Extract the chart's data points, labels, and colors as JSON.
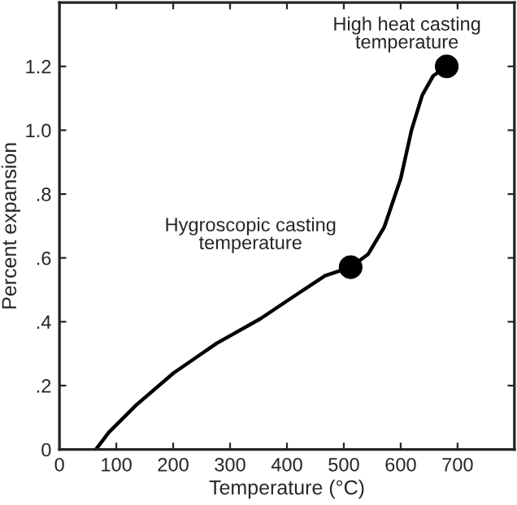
{
  "chart_data": {
    "type": "line",
    "xlabel": "Temperature (°C)",
    "ylabel": "Percent expansion",
    "xlim": [
      0,
      800
    ],
    "xticks": [
      0,
      100,
      200,
      300,
      400,
      500,
      600,
      700
    ],
    "ylim": [
      0,
      1.4
    ],
    "yticks": [
      0,
      {
        "value": 0.2,
        "label": ".2"
      },
      {
        "value": 0.4,
        "label": ".4"
      },
      {
        "value": 0.6,
        "label": ".6"
      },
      {
        "value": 0.8,
        "label": ".8"
      },
      {
        "value": 1.0,
        "label": "1.0"
      },
      {
        "value": 1.2,
        "label": "1.2"
      }
    ],
    "grid": false,
    "series": [
      {
        "color": "#000000",
        "x": [
          64,
          87,
          135,
          201,
          277,
          353,
          410,
          467,
          512,
          543,
          571,
          600,
          619,
          638,
          657,
          681
        ],
        "values": [
          0,
          0.054,
          0.139,
          0.24,
          0.333,
          0.409,
          0.477,
          0.544,
          0.571,
          0.612,
          0.696,
          0.848,
          1.0,
          1.11,
          1.17,
          1.2
        ]
      },
      {
        "type": "scatter",
        "color": "#000000",
        "marker": "circle",
        "x": [
          512,
          681
        ],
        "values": [
          0.571,
          1.2
        ]
      }
    ],
    "annotations": [
      {
        "text": "Hygroscopic casting\ntemperature",
        "x": 512,
        "y": 0.571
      },
      {
        "text": "High heat casting\ntemperature",
        "x": 681,
        "y": 1.2
      }
    ]
  }
}
